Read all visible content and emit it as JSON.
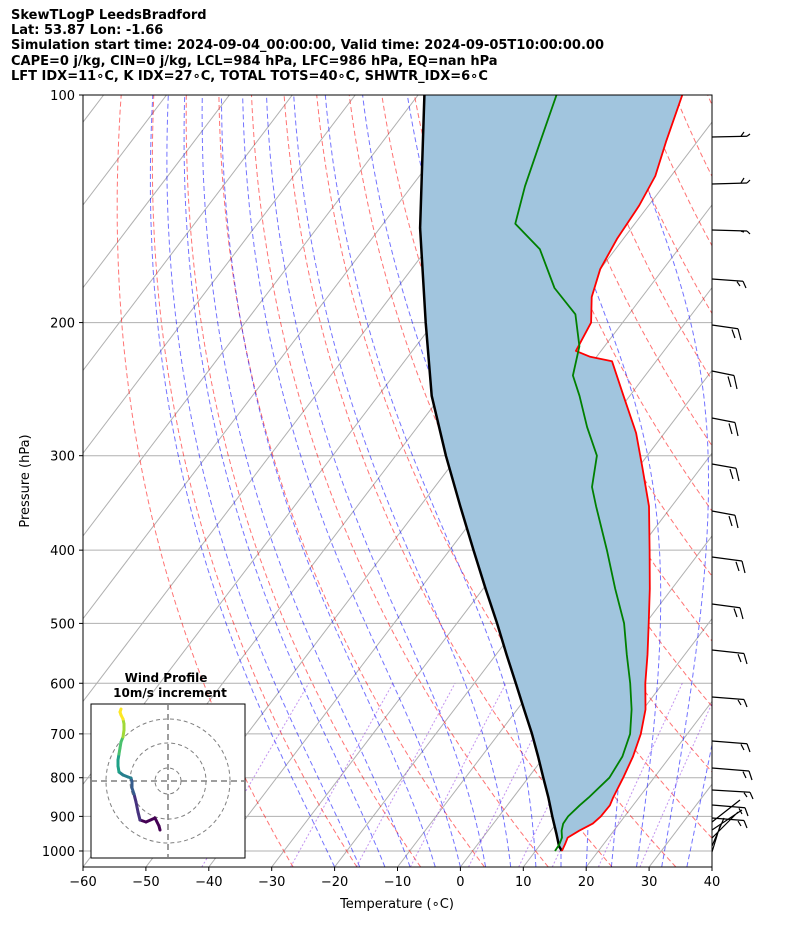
{
  "title": {
    "line1": "SkewTLogP LeedsBradford",
    "line2": "Lat: 53.87   Lon: -1.66",
    "line3": "Simulation start time: 2024-09-04_00:00:00, Valid time: 2024-09-05T10:00:00.00",
    "line4": "CAPE=0 j/kg, CIN=0 j/kg, LCL=984 hPa, LFC=986 hPa, EQ=nan hPa",
    "line5": "LFT IDX=11∘C, K IDX=27∘C, TOTAL TOTS=40∘C, SHWTR_IDX=6∘C"
  },
  "chart_data": {
    "type": "line",
    "xlabel": "Temperature (∘C)",
    "ylabel": "Pressure (hPa)",
    "xlim": [
      -60,
      40
    ],
    "ylim": [
      1050,
      100
    ],
    "yscale": "log",
    "grid": true,
    "x_ticks": [
      "−60",
      "−50",
      "−40",
      "−30",
      "−20",
      "−10",
      "0",
      "10",
      "20",
      "30",
      "40"
    ],
    "y_ticks": [
      "100",
      "200",
      "300",
      "400",
      "500",
      "600",
      "700",
      "800",
      "900",
      "1000"
    ],
    "series": [
      {
        "key": "temperature",
        "color": "#ff0000",
        "points": [
          [
            1000,
            14.2
          ],
          [
            980,
            13.9
          ],
          [
            960,
            13.5
          ],
          [
            940,
            14.5
          ],
          [
            920,
            15.8
          ],
          [
            900,
            16.2
          ],
          [
            870,
            16.3
          ],
          [
            850,
            15.9
          ],
          [
            800,
            15.1
          ],
          [
            750,
            14.1
          ],
          [
            700,
            12.6
          ],
          [
            650,
            10.4
          ],
          [
            600,
            7.2
          ],
          [
            550,
            4.1
          ],
          [
            500,
            0.5
          ],
          [
            450,
            -3.5
          ],
          [
            400,
            -8.2
          ],
          [
            350,
            -13.6
          ],
          [
            310,
            -19.5
          ],
          [
            280,
            -24.5
          ],
          [
            250,
            -31.0
          ],
          [
            225,
            -37.0
          ],
          [
            222,
            -41.0
          ],
          [
            218,
            -44.0
          ],
          [
            200,
            -45.0
          ],
          [
            185,
            -48.0
          ],
          [
            170,
            -50.0
          ],
          [
            155,
            -51.0
          ],
          [
            140,
            -51.5
          ],
          [
            128,
            -52.5
          ],
          [
            115,
            -55.0
          ],
          [
            100,
            -58.0
          ]
        ]
      },
      {
        "key": "dewpoint",
        "color": "#008000",
        "points": [
          [
            1000,
            13.1
          ],
          [
            980,
            13.0
          ],
          [
            960,
            12.6
          ],
          [
            940,
            11.7
          ],
          [
            920,
            11.1
          ],
          [
            900,
            11.0
          ],
          [
            870,
            11.5
          ],
          [
            850,
            12.0
          ],
          [
            800,
            12.9
          ],
          [
            750,
            12.4
          ],
          [
            700,
            10.9
          ],
          [
            650,
            8.2
          ],
          [
            600,
            4.8
          ],
          [
            550,
            0.8
          ],
          [
            500,
            -3.4
          ],
          [
            450,
            -9.0
          ],
          [
            400,
            -15.0
          ],
          [
            350,
            -22.0
          ],
          [
            330,
            -25.0
          ],
          [
            300,
            -28.0
          ],
          [
            275,
            -33.0
          ],
          [
            250,
            -38.0
          ],
          [
            235,
            -41.5
          ],
          [
            215,
            -44.0
          ],
          [
            195,
            -48.5
          ],
          [
            180,
            -55.0
          ],
          [
            160,
            -62.0
          ],
          [
            148,
            -69.0
          ],
          [
            132,
            -72.0
          ],
          [
            115,
            -75.0
          ],
          [
            100,
            -78.0
          ]
        ]
      },
      {
        "key": "parcel",
        "color": "#000000",
        "points": [
          [
            1000,
            14.2
          ],
          [
            986,
            13.2
          ],
          [
            950,
            11.3
          ],
          [
            900,
            8.5
          ],
          [
            850,
            5.6
          ],
          [
            800,
            2.4
          ],
          [
            750,
            -1.0
          ],
          [
            700,
            -4.7
          ],
          [
            650,
            -8.9
          ],
          [
            600,
            -13.4
          ],
          [
            550,
            -18.3
          ],
          [
            500,
            -23.6
          ],
          [
            450,
            -29.6
          ],
          [
            400,
            -36.2
          ],
          [
            350,
            -43.6
          ],
          [
            300,
            -52.0
          ],
          [
            250,
            -61.5
          ],
          [
            200,
            -71.3
          ],
          [
            150,
            -83.6
          ],
          [
            100,
            -99.0
          ]
        ]
      }
    ],
    "wind_barbs_label": "",
    "inset": {
      "title_line1": "Wind Profile",
      "title_line2": "10m/s increment"
    }
  }
}
